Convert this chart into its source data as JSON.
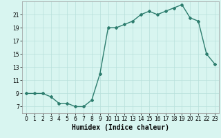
{
  "x": [
    0,
    1,
    2,
    3,
    4,
    5,
    6,
    7,
    8,
    9,
    10,
    11,
    12,
    13,
    14,
    15,
    16,
    17,
    18,
    19,
    20,
    21,
    22,
    23
  ],
  "y": [
    9,
    9,
    9,
    8.5,
    7.5,
    7.5,
    7,
    7,
    8,
    12,
    19,
    19,
    19.5,
    20,
    21,
    21.5,
    21,
    21.5,
    22,
    22.5,
    20.5,
    20,
    15,
    13.5
  ],
  "line_color": "#2d7d6e",
  "marker": "D",
  "marker_size": 2,
  "bg_color": "#d8f5f0",
  "grid_color": "#b8e0db",
  "xlabel": "Humidex (Indice chaleur)",
  "xlabel_fontsize": 7,
  "xlim": [
    -0.5,
    23.5
  ],
  "ylim": [
    6,
    23
  ],
  "yticks": [
    7,
    9,
    11,
    13,
    15,
    17,
    19,
    21
  ],
  "xticks": [
    0,
    1,
    2,
    3,
    4,
    5,
    6,
    7,
    8,
    9,
    10,
    11,
    12,
    13,
    14,
    15,
    16,
    17,
    18,
    19,
    20,
    21,
    22,
    23
  ],
  "tick_fontsize": 5.5,
  "line_width": 1.0
}
